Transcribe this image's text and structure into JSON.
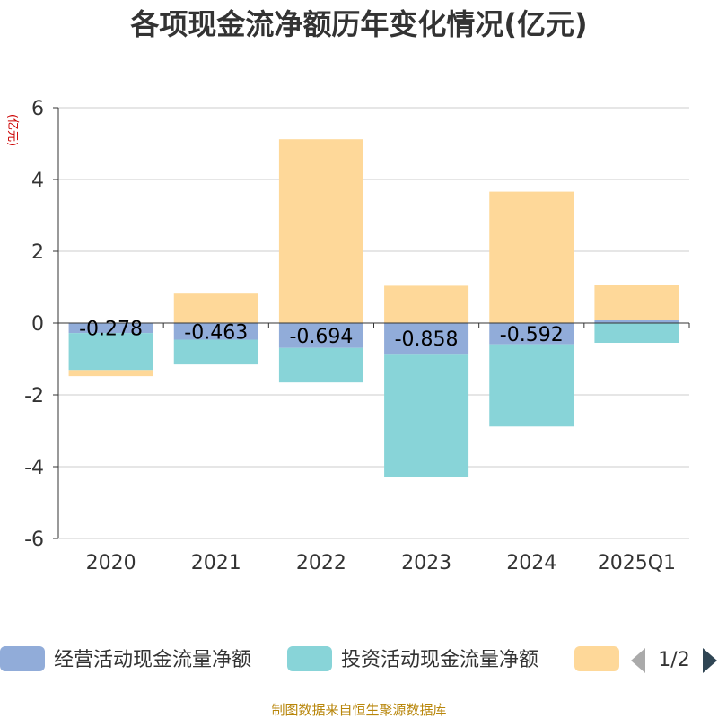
{
  "chart_data": {
    "type": "bar",
    "stacked": true,
    "title": "各项现金流净额历年变化情况(亿元)",
    "ylabel": "(亿元)",
    "xlabel": "",
    "ylim": [
      -6,
      6
    ],
    "yticks": [
      -6,
      -4,
      -2,
      0,
      2,
      4,
      6
    ],
    "categories": [
      "2020",
      "2021",
      "2022",
      "2023",
      "2024",
      "2025Q1"
    ],
    "series": [
      {
        "name": "经营活动现金流量净额",
        "color": "#91acd9",
        "values": [
          -0.278,
          -0.463,
          -0.694,
          -0.858,
          -0.592,
          0.08
        ],
        "labels": [
          "-0.278",
          "-0.463",
          "-0.694",
          "-0.858",
          "-0.592",
          ""
        ]
      },
      {
        "name": "投资活动现金流量净额",
        "color": "#88d4d8",
        "values": [
          -1.03,
          -0.69,
          -0.96,
          -3.42,
          -2.29,
          -0.55
        ]
      },
      {
        "name": "",
        "color": "#fed899",
        "values": [
          -0.17,
          0.82,
          5.12,
          1.04,
          3.66,
          0.97
        ]
      }
    ],
    "legend_position": "bottom",
    "grid": true
  },
  "legend": {
    "items": [
      {
        "label": "经营活动现金流量净额",
        "color": "#91acd9"
      },
      {
        "label": "投资活动现金流量净额",
        "color": "#88d4d8"
      },
      {
        "label": "",
        "color": "#fed899"
      }
    ],
    "pager": "1/2"
  },
  "footer": {
    "source": "制图数据来自恒生聚源数据库"
  }
}
